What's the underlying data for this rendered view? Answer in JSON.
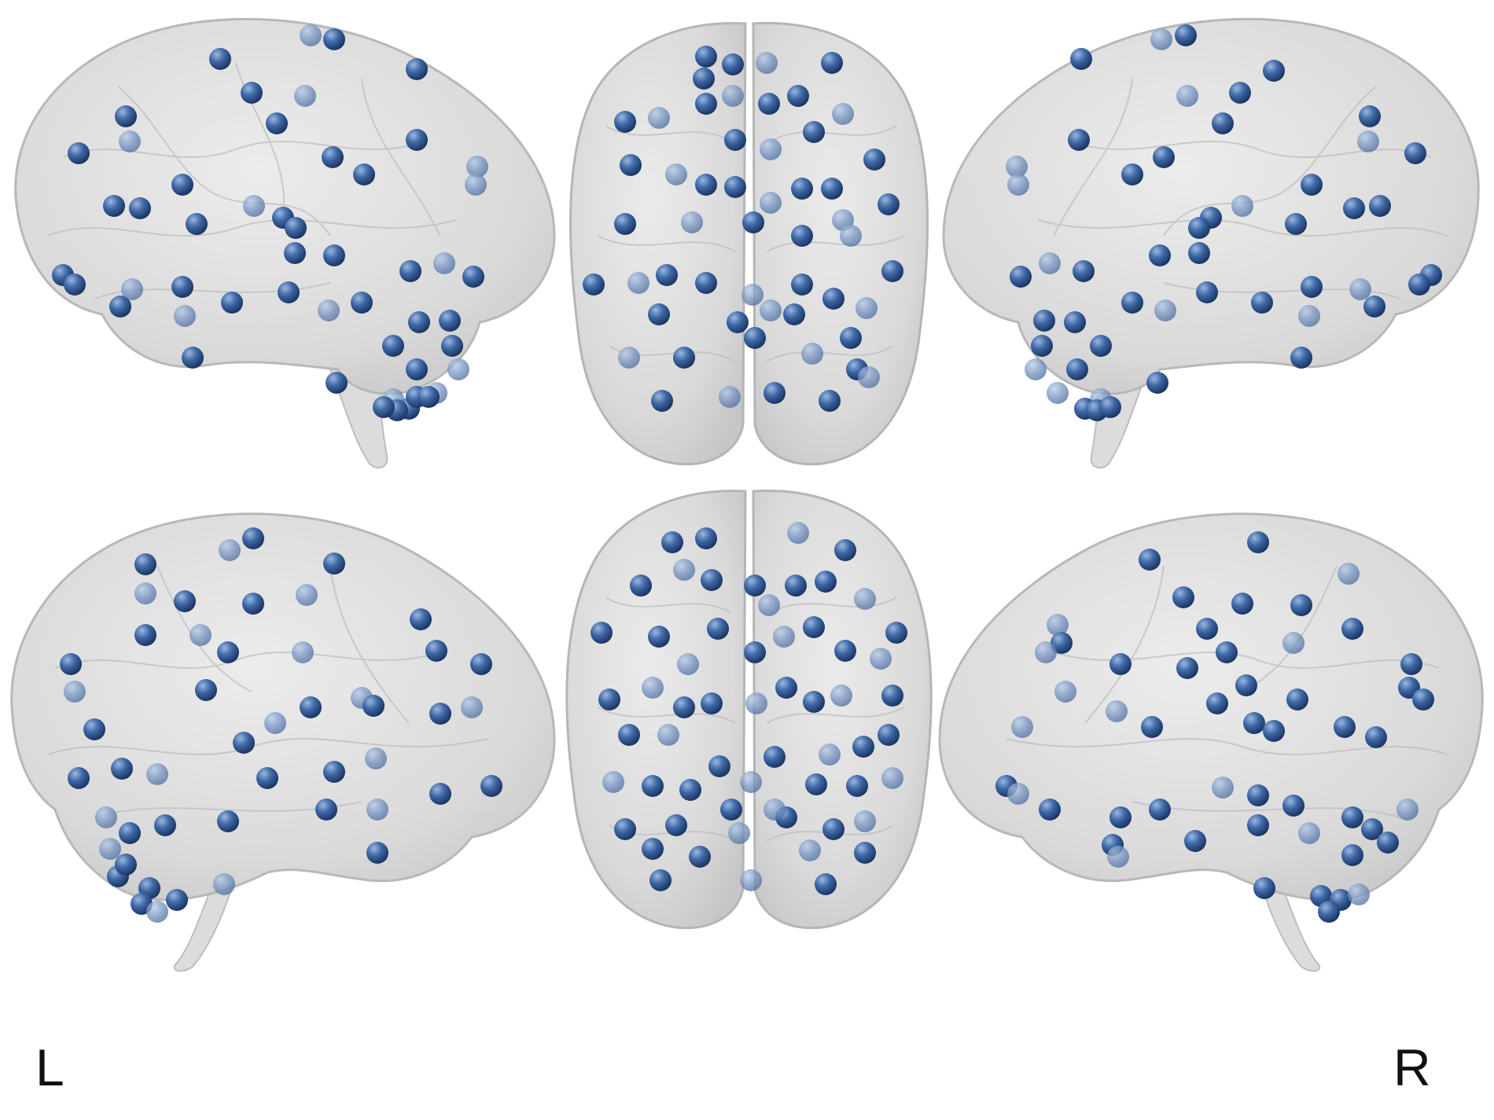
{
  "labels": {
    "left": "L",
    "right": "R"
  },
  "colors": {
    "background": "#ffffff",
    "brain_fill": "#d6d6d6",
    "brain_edge": "#b9b9b9",
    "node_light": "#7c9fce",
    "node_mid": "#3d66a3",
    "node_dark": "#1c3a6b"
  },
  "views": [
    "left-lateral",
    "superior",
    "right-lateral",
    "left-medial",
    "inferior",
    "right-medial"
  ]
}
